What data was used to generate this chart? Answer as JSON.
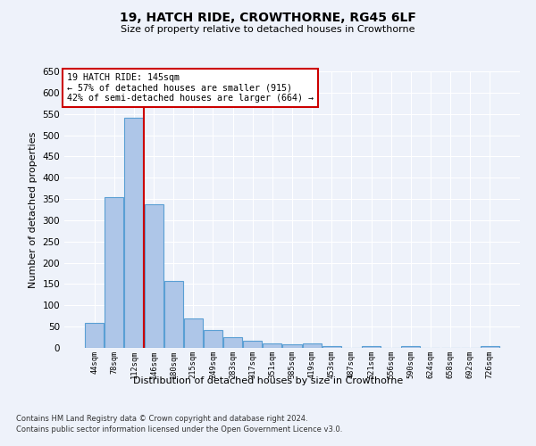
{
  "title1": "19, HATCH RIDE, CROWTHORNE, RG45 6LF",
  "title2": "Size of property relative to detached houses in Crowthorne",
  "xlabel": "Distribution of detached houses by size in Crowthorne",
  "ylabel": "Number of detached properties",
  "bar_values": [
    58,
    355,
    540,
    338,
    157,
    70,
    42,
    25,
    17,
    10,
    9,
    10,
    5,
    0,
    5,
    0,
    5,
    0,
    0,
    0,
    5
  ],
  "all_labels": [
    "44sqm",
    "78sqm",
    "112sqm",
    "146sqm",
    "180sqm",
    "215sqm",
    "249sqm",
    "283sqm",
    "317sqm",
    "351sqm",
    "385sqm",
    "419sqm",
    "453sqm",
    "487sqm",
    "521sqm",
    "556sqm",
    "590sqm",
    "624sqm",
    "658sqm",
    "692sqm",
    "726sqm"
  ],
  "bar_color": "#aec6e8",
  "bar_edge_color": "#5a9fd4",
  "annotation_title": "19 HATCH RIDE: 145sqm",
  "annotation_line1": "← 57% of detached houses are smaller (915)",
  "annotation_line2": "42% of semi-detached houses are larger (664) →",
  "annotation_box_color": "#ffffff",
  "annotation_box_edge": "#cc0000",
  "ylim": [
    0,
    650
  ],
  "yticks": [
    0,
    50,
    100,
    150,
    200,
    250,
    300,
    350,
    400,
    450,
    500,
    550,
    600,
    650
  ],
  "footer1": "Contains HM Land Registry data © Crown copyright and database right 2024.",
  "footer2": "Contains public sector information licensed under the Open Government Licence v3.0.",
  "background_color": "#eef2fa",
  "plot_background": "#eef2fa",
  "grid_color": "#ffffff",
  "red_line_color": "#cc0000"
}
